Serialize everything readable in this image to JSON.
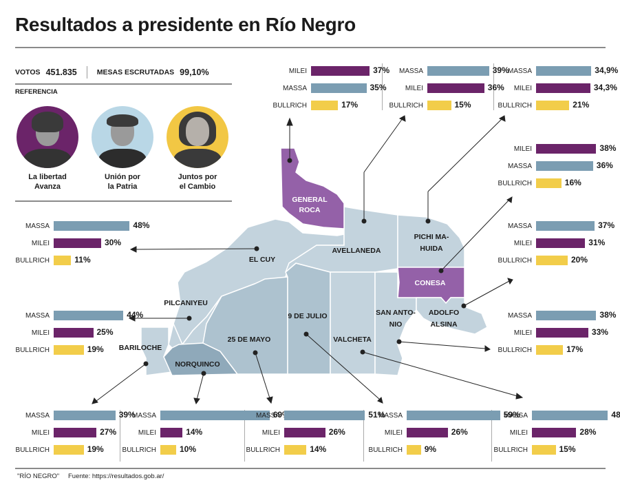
{
  "header": {
    "title": "Resultados a presidente en Río Negro",
    "votos_label": "VOTOS",
    "votos_value": "451.835",
    "mesas_label": "MESAS ESCRUTADAS",
    "mesas_value": "99,10%",
    "referencia_label": "REFERENCIA"
  },
  "candidates": [
    {
      "key": "milei",
      "party_line1": "La libertad",
      "party_line2": "Avanza",
      "color": "#6b2469",
      "bg": "#6b2469"
    },
    {
      "key": "massa",
      "party_line1": "Unión por",
      "party_line2": "la Patria",
      "color": "#7b9db2",
      "bg": "#b9d7e6"
    },
    {
      "key": "bullrich",
      "party_line1": "Juntos por",
      "party_line2": "el Cambio",
      "color": "#f2cd4a",
      "bg": "#f2c744"
    }
  ],
  "colors": {
    "milei": "#6b2469",
    "massa": "#7b9db2",
    "bullrich": "#f2cd4a",
    "region_winner_milei": "#9461a8",
    "region_light": "#c3d3dd",
    "region_mid": "#adc2cf",
    "region_dark": "#8fa9ba"
  },
  "footer": {
    "note": "\"RÍO NEGRO\"",
    "source": "Fuente: https://resultados.gob.ar/"
  },
  "chart_data": {
    "type": "bar",
    "title": "Resultados a presidente en Río Negro",
    "unit": "%",
    "departments": [
      {
        "name": "GENERAL ROCA",
        "winner": "MILEI",
        "results": [
          {
            "candidate": "MILEI",
            "value": 37,
            "label": "37%"
          },
          {
            "candidate": "MASSA",
            "value": 35,
            "label": "35%"
          },
          {
            "candidate": "BULLRICH",
            "value": 17,
            "label": "17%"
          }
        ]
      },
      {
        "name": "AVELLANEDA",
        "winner": "MASSA",
        "results": [
          {
            "candidate": "MASSA",
            "value": 39,
            "label": "39%"
          },
          {
            "candidate": "MILEI",
            "value": 36,
            "label": "36%"
          },
          {
            "candidate": "BULLRICH",
            "value": 15,
            "label": "15%"
          }
        ]
      },
      {
        "name": "PICHI MAHUIDA",
        "winner": "MASSA",
        "results": [
          {
            "candidate": "MASSA",
            "value": 34.9,
            "label": "34,9%"
          },
          {
            "candidate": "MILEI",
            "value": 34.3,
            "label": "34,3%"
          },
          {
            "candidate": "BULLRICH",
            "value": 21,
            "label": "21%"
          }
        ]
      },
      {
        "name": "CONESA",
        "winner": "MILEI",
        "results": [
          {
            "candidate": "MILEI",
            "value": 38,
            "label": "38%"
          },
          {
            "candidate": "MASSA",
            "value": 36,
            "label": "36%"
          },
          {
            "candidate": "BULLRICH",
            "value": 16,
            "label": "16%"
          }
        ]
      },
      {
        "name": "ADOLFO ALSINA",
        "winner": "MASSA",
        "results": [
          {
            "candidate": "MASSA",
            "value": 37,
            "label": "37%"
          },
          {
            "candidate": "MILEI",
            "value": 31,
            "label": "31%"
          },
          {
            "candidate": "BULLRICH",
            "value": 20,
            "label": "20%"
          }
        ]
      },
      {
        "name": "SAN ANTONIO",
        "winner": "MASSA",
        "results": [
          {
            "candidate": "MASSA",
            "value": 38,
            "label": "38%"
          },
          {
            "candidate": "MILEI",
            "value": 33,
            "label": "33%"
          },
          {
            "candidate": "BULLRICH",
            "value": 17,
            "label": "17%"
          }
        ]
      },
      {
        "name": "EL CUY",
        "winner": "MASSA",
        "results": [
          {
            "candidate": "MASSA",
            "value": 48,
            "label": "48%"
          },
          {
            "candidate": "MILEI",
            "value": 30,
            "label": "30%"
          },
          {
            "candidate": "BULLRICH",
            "value": 11,
            "label": "11%"
          }
        ]
      },
      {
        "name": "PILCANIYEU",
        "winner": "MASSA",
        "results": [
          {
            "candidate": "MASSA",
            "value": 44,
            "label": "44%"
          },
          {
            "candidate": "MILEI",
            "value": 25,
            "label": "25%"
          },
          {
            "candidate": "BULLRICH",
            "value": 19,
            "label": "19%"
          }
        ]
      },
      {
        "name": "BARILOCHE",
        "winner": "MASSA",
        "results": [
          {
            "candidate": "MASSA",
            "value": 39,
            "label": "39%"
          },
          {
            "candidate": "MILEI",
            "value": 27,
            "label": "27%"
          },
          {
            "candidate": "BULLRICH",
            "value": 19,
            "label": "19%"
          }
        ]
      },
      {
        "name": "NORQUINCO",
        "winner": "MASSA",
        "results": [
          {
            "candidate": "MASSA",
            "value": 69,
            "label": "69%"
          },
          {
            "candidate": "MILEI",
            "value": 14,
            "label": "14%"
          },
          {
            "candidate": "BULLRICH",
            "value": 10,
            "label": "10%"
          }
        ]
      },
      {
        "name": "25 DE MAYO",
        "winner": "MASSA",
        "results": [
          {
            "candidate": "MASSA",
            "value": 51,
            "label": "51%"
          },
          {
            "candidate": "MILEI",
            "value": 26,
            "label": "26%"
          },
          {
            "candidate": "BULLRICH",
            "value": 14,
            "label": "14%"
          }
        ]
      },
      {
        "name": "9 DE JULIO",
        "winner": "MASSA",
        "results": [
          {
            "candidate": "MASSA",
            "value": 59,
            "label": "59%"
          },
          {
            "candidate": "MILEI",
            "value": 26,
            "label": "26%"
          },
          {
            "candidate": "BULLRICH",
            "value": 9,
            "label": "9%"
          }
        ]
      },
      {
        "name": "VALCHETA",
        "winner": "MASSA",
        "results": [
          {
            "candidate": "MASSA",
            "value": 48,
            "label": "48%"
          },
          {
            "candidate": "MILEI",
            "value": 28,
            "label": "28%"
          },
          {
            "candidate": "BULLRICH",
            "value": 15,
            "label": "15%"
          }
        ]
      }
    ],
    "map_labels": [
      {
        "text": "GENERAL",
        "text2": "ROCA"
      },
      {
        "text": "AVELLANEDA"
      },
      {
        "text": "PICHI MA-",
        "text2": "HUIDA"
      },
      {
        "text": "CONESA"
      },
      {
        "text": "ADOLFO",
        "text2": "ALSINA"
      },
      {
        "text": "SAN ANTO-",
        "text2": "NIO"
      },
      {
        "text": "EL CUY"
      },
      {
        "text": "PILCANIYEU"
      },
      {
        "text": "BARILOCHE"
      },
      {
        "text": "NORQUINCO"
      },
      {
        "text": "25 DE MAYO"
      },
      {
        "text": "9 DE JULIO"
      },
      {
        "text": "VALCHETA"
      }
    ]
  }
}
